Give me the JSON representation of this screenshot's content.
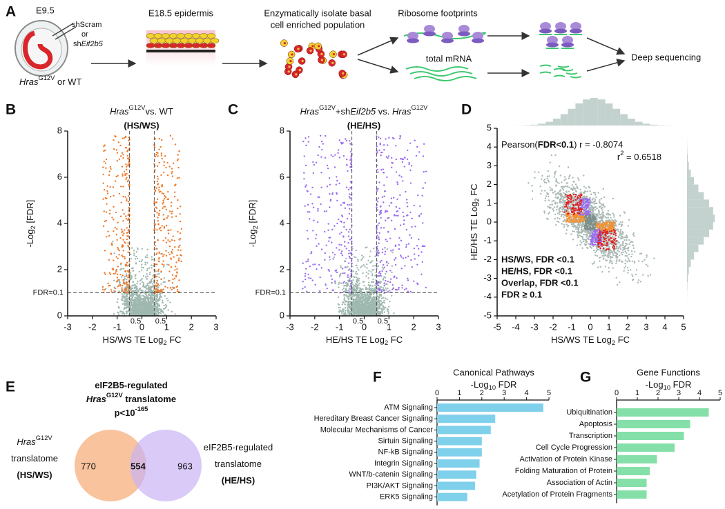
{
  "panel_a": {
    "letter": "A",
    "e95": "E9.5",
    "sh1": "shScram",
    "or": "or",
    "sh2": [
      {
        "text": "sh"
      },
      {
        "text": "Eif2b5",
        "italic": true
      }
    ],
    "genotype": [
      {
        "text": "Hras",
        "italic": true
      },
      {
        "text": "G12V",
        "sup": true
      },
      {
        "text": " or WT"
      }
    ],
    "e185": "E18.5 epidermis",
    "isolate1": "Enzymatically isolate basal",
    "isolate2": "cell enriched population",
    "ribo": "Ribosome footprints",
    "mrna": "total mRNA",
    "seq": "Deep sequencing"
  },
  "chart_data": [
    {
      "type": "volcano",
      "letter": "B",
      "title": [
        {
          "text": "Hras",
          "italic": true
        },
        {
          "text": "G12V",
          "sup": true
        },
        {
          "text": "vs. WT"
        }
      ],
      "subtitle": "(HS/WS)",
      "subtitle_color": "#f06a1e",
      "x_label": [
        {
          "text": "HS/WS TE Log"
        },
        {
          "text": "2",
          "sub": true
        },
        {
          "text": " FC"
        }
      ],
      "y_label": [
        {
          "text": "-Log"
        },
        {
          "text": "2",
          "sub": true
        },
        {
          "text": " [FDR]"
        }
      ],
      "xlim": [
        -3,
        3
      ],
      "xticks": [
        -3,
        -2,
        -1,
        0,
        1,
        2,
        3
      ],
      "ylim": [
        0,
        8
      ],
      "yticks": [
        0,
        2,
        4,
        6,
        8
      ],
      "thresholds": [
        {
          "value": -0.5,
          "label": "0.5"
        },
        {
          "value": 0.5,
          "label": "0.5"
        }
      ],
      "fdr_line": {
        "value": 1,
        "label": "FDR=0.1"
      },
      "color": "#f07a2a",
      "base_color": "#9fb8b0"
    },
    {
      "type": "volcano",
      "letter": "C",
      "title": [
        {
          "text": "Hras",
          "italic": true
        },
        {
          "text": "G12V",
          "sup": true
        },
        {
          "text": "+sh"
        },
        {
          "text": "Eif2b5",
          "italic": true
        },
        {
          "text": " vs. "
        },
        {
          "text": "Hras",
          "italic": true
        },
        {
          "text": "G12V",
          "sup": true
        }
      ],
      "subtitle": "(HE/HS)",
      "subtitle_color": "#8a5cf0",
      "x_label": [
        {
          "text": "HE/HS TE Log"
        },
        {
          "text": "2",
          "sub": true
        },
        {
          "text": " FC"
        }
      ],
      "y_label": [
        {
          "text": "-Log"
        },
        {
          "text": "2",
          "sub": true
        },
        {
          "text": " [FDR]"
        }
      ],
      "xlim": [
        -3,
        3
      ],
      "xticks": [
        -3,
        -2,
        -1,
        0,
        1,
        2,
        3
      ],
      "ylim": [
        0,
        8
      ],
      "yticks": [
        0,
        2,
        4,
        6,
        8
      ],
      "thresholds": [
        {
          "value": -0.5,
          "label": "0.5"
        },
        {
          "value": 0.5,
          "label": "0.5"
        }
      ],
      "fdr_line": {
        "value": 1,
        "label": "FDR=0.1"
      },
      "color": "#9b6cf0",
      "base_color": "#9fb8b0"
    },
    {
      "type": "scatter",
      "letter": "D",
      "x_label": [
        {
          "text": "HS/WS TE Log"
        },
        {
          "text": "2",
          "sub": true
        },
        {
          "text": " FC"
        }
      ],
      "y_label": [
        {
          "text": "HE/HS TE Log"
        },
        {
          "text": "2",
          "sub": true
        },
        {
          "text": " FC"
        }
      ],
      "xlim": [
        -5,
        5
      ],
      "xticks": [
        -5,
        -4,
        -3,
        -2,
        -1,
        0,
        1,
        2,
        3,
        4,
        5
      ],
      "ylim": [
        -5,
        5
      ],
      "yticks": [
        -5,
        -4,
        -3,
        -2,
        -1,
        0,
        1,
        2,
        3,
        4,
        5
      ],
      "pearson": [
        {
          "text": "Pearson("
        },
        {
          "text": "FDR<0.1",
          "bold": true
        },
        {
          "text": ") r = -0.8074"
        }
      ],
      "r2": [
        {
          "text": "r"
        },
        {
          "text": "2",
          "sup": true
        },
        {
          "text": " = 0.6518"
        }
      ],
      "series": [
        {
          "name": "HS/WS, FDR <0.1",
          "color": "#f5902e"
        },
        {
          "name": "HE/HS, FDR <0.1",
          "color": "#9b6cf0"
        },
        {
          "name": "Overlap, FDR <0.1",
          "color": "#e0201e"
        },
        {
          "name": "FDR ≥ 0.1",
          "color": "#7d8f8a"
        }
      ]
    },
    {
      "type": "venn",
      "letter": "E",
      "title_lines": [
        [
          {
            "text": "eIF2B5-regulated"
          }
        ],
        [
          {
            "text": "Hras",
            "italic": true
          },
          {
            "text": "G12V",
            "sup": true
          },
          {
            "text": " translatome"
          }
        ],
        [
          {
            "text": "p<10"
          },
          {
            "text": "-165",
            "sup": true
          }
        ]
      ],
      "left_label": [
        [
          {
            "text": "Hras",
            "italic": true
          },
          {
            "text": "G12V",
            "sup": true
          }
        ],
        [
          {
            "text": "translatome"
          }
        ],
        [
          {
            "text": "(HS/WS)",
            "bold": true
          }
        ]
      ],
      "right_label": [
        [
          {
            "text": "eIF2B5-regulated"
          }
        ],
        [
          {
            "text": "translatome"
          }
        ],
        [
          {
            "text": "(HE/HS)",
            "bold": true
          }
        ]
      ],
      "values": [
        770,
        554,
        963
      ],
      "colors": [
        "#f7b98c",
        "#c9b3f5"
      ]
    },
    {
      "type": "hbar",
      "letter": "F",
      "title": "Canonical Pathways",
      "axis_label": [
        {
          "text": "-Log"
        },
        {
          "text": "10",
          "sub": true
        },
        {
          "text": " FDR"
        }
      ],
      "categories": [
        "ATM Signaling",
        "Hereditary Breast Cancer Signaling",
        "Molecular Mechanisms of Cancer",
        "Sirtuin Signaling",
        "NF-kB Signaling",
        "Integrin Signaling",
        "WNT/b-catenin Signaling",
        "PI3K/AKT Signaling",
        "ERK5 Signaling"
      ],
      "values": [
        4.75,
        2.6,
        2.4,
        2.0,
        2.0,
        1.9,
        1.75,
        1.7,
        1.35
      ],
      "xlim": [
        0,
        5
      ],
      "xticks": [
        0,
        1,
        2,
        3,
        4,
        5
      ],
      "color": "#7fd0ea"
    },
    {
      "type": "hbar",
      "letter": "G",
      "title": "Gene Functions",
      "axis_label": [
        {
          "text": "-Log"
        },
        {
          "text": "10",
          "sub": true
        },
        {
          "text": " FDR"
        }
      ],
      "categories": [
        "Ubiquitination",
        "Apoptosis",
        "Transcription",
        "Cell Cycle Progression",
        "Activation of Protein Kinase",
        "Folding Maturation of Protein",
        "Association of Actin",
        "Acetylation of Protein Fragments"
      ],
      "values": [
        4.45,
        3.55,
        3.25,
        2.8,
        1.95,
        1.6,
        1.45,
        1.45
      ],
      "xlim": [
        0,
        5
      ],
      "xticks": [
        0,
        1,
        2,
        3,
        4,
        5
      ],
      "color": "#84e0a8"
    }
  ]
}
